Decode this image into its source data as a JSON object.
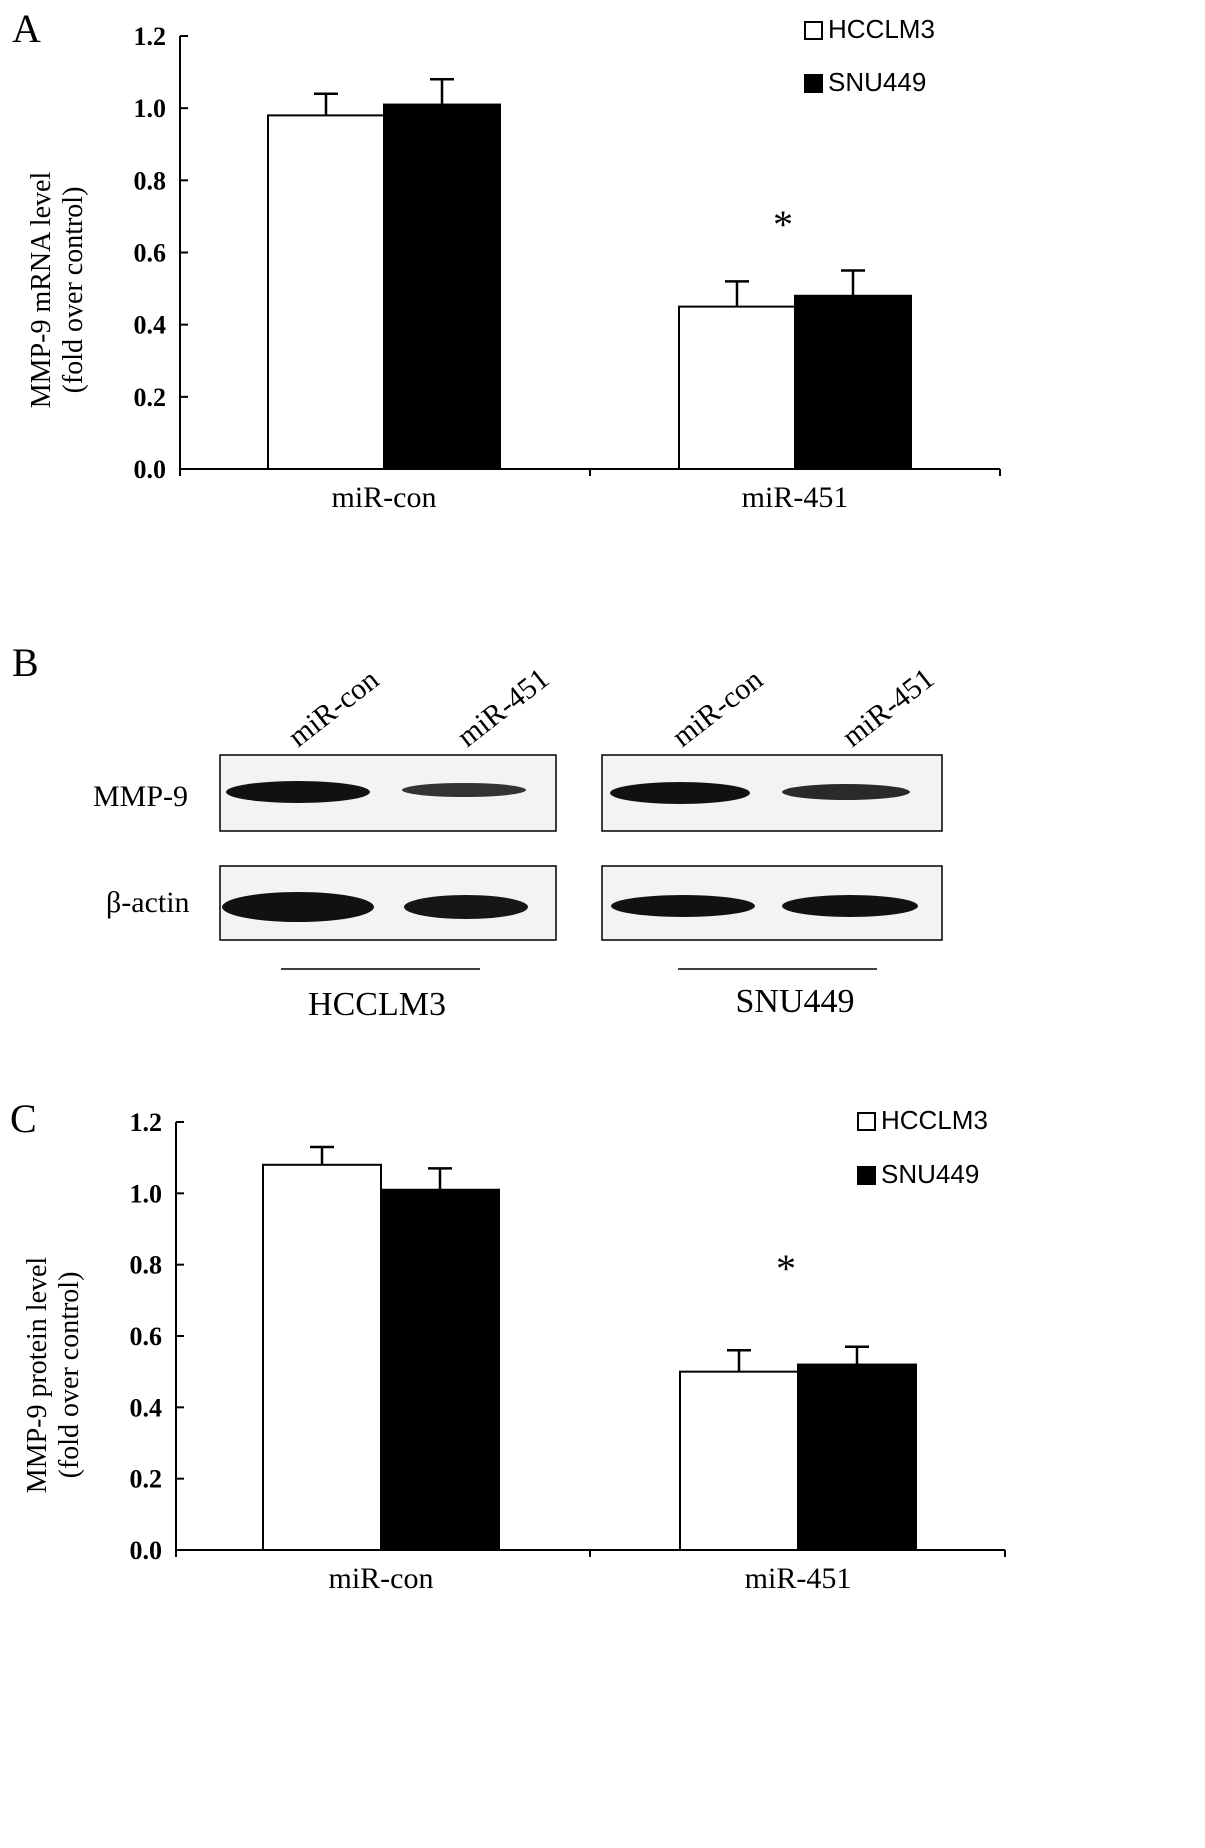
{
  "chart_data": [
    {
      "panel": "A",
      "type": "bar",
      "categories": [
        "miR-con",
        "miR-451"
      ],
      "series": [
        {
          "name": "HCCLM3",
          "values": [
            0.98,
            0.45
          ],
          "errors": [
            0.06,
            0.07
          ],
          "color": "#ffffff"
        },
        {
          "name": "SNU449",
          "values": [
            1.01,
            0.48
          ],
          "errors": [
            0.07,
            0.07
          ],
          "color": "#000000"
        }
      ],
      "ylabel": "MMP-9 mRNA level",
      "ylabel2": "(fold over control)",
      "ylim": [
        0,
        1.2
      ],
      "yticks": [
        "0.0",
        "0.2",
        "0.4",
        "0.6",
        "0.8",
        "1.0",
        "1.2"
      ],
      "annotations": [
        "*"
      ],
      "legend": "top-right",
      "grid": false
    },
    {
      "panel": "C",
      "type": "bar",
      "categories": [
        "miR-con",
        "miR-451"
      ],
      "series": [
        {
          "name": "HCCLM3",
          "values": [
            1.08,
            0.5
          ],
          "errors": [
            0.05,
            0.06
          ],
          "color": "#ffffff"
        },
        {
          "name": "SNU449",
          "values": [
            1.01,
            0.52
          ],
          "errors": [
            0.06,
            0.05
          ],
          "color": "#000000"
        }
      ],
      "ylabel": "MMP-9 protein level",
      "ylabel2": "(fold over control)",
      "ylim": [
        0,
        1.2
      ],
      "yticks": [
        "0.0",
        "0.2",
        "0.4",
        "0.6",
        "0.8",
        "1.0",
        "1.2"
      ],
      "annotations": [
        "*"
      ],
      "legend": "top-right",
      "grid": false
    }
  ],
  "blot": {
    "panel": "B",
    "lane_labels": [
      "miR-con",
      "miR-451",
      "miR-con",
      "miR-451"
    ],
    "row_labels": [
      "MMP-9",
      "β-actin"
    ],
    "cell_lines": [
      "HCCLM3",
      "SNU449"
    ]
  }
}
